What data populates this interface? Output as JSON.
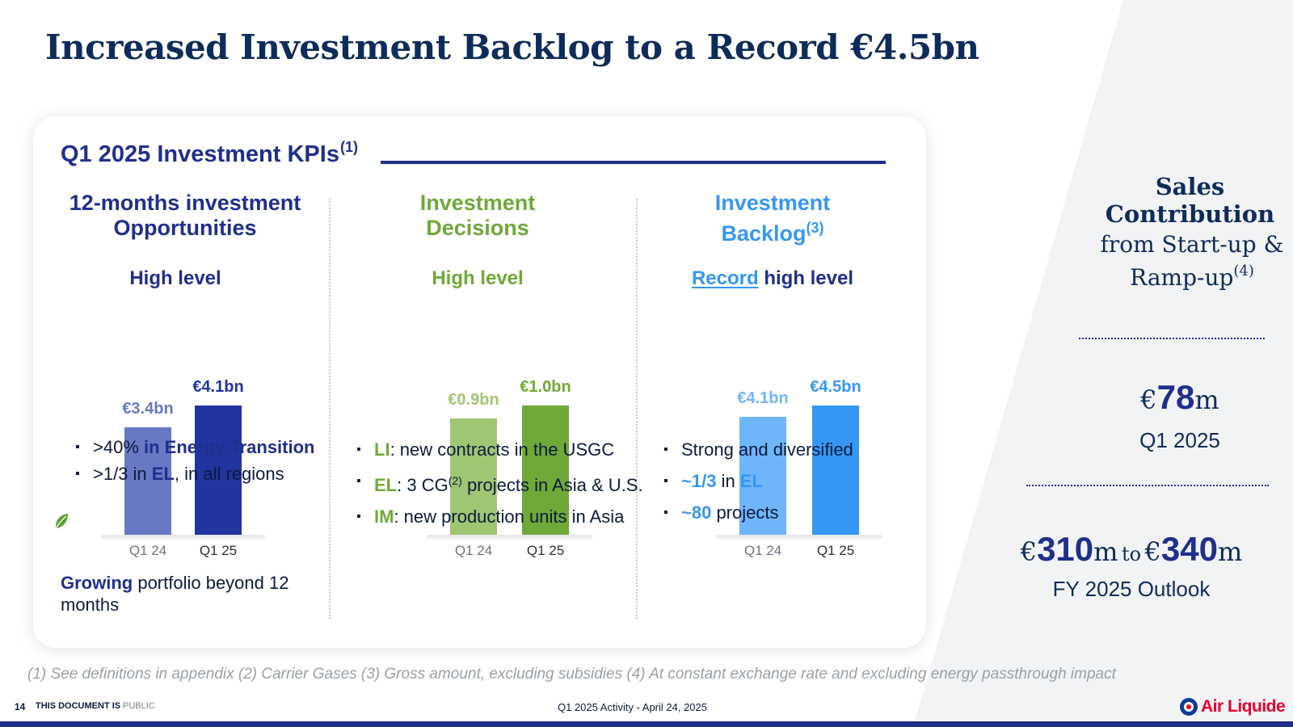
{
  "title": "Increased Investment Backlog to a Record €4.5bn",
  "kpi": {
    "title": "Q1 2025 Investment KPIs",
    "note": "(1)"
  },
  "colors": {
    "navy": "#1f2f8c",
    "green": "#6fa937",
    "blue": "#3597f5"
  },
  "columns": [
    {
      "heading1": "12-months investment",
      "heading2": "Opportunities",
      "subtitle": "High level",
      "color": "#1f2f8c",
      "bars": [
        {
          "label": "Q1 24",
          "value": 3.4,
          "text": "€3.4bn",
          "color": "#6878c4"
        },
        {
          "label": "Q1 25",
          "value": 4.1,
          "text": "€4.1bn",
          "color": "#2134a0"
        }
      ]
    },
    {
      "heading1": "Investment",
      "heading2": "Decisions",
      "subtitle": "High level",
      "color": "#6fa937",
      "bars": [
        {
          "label": "Q1 24",
          "value": 0.9,
          "text": "€0.9bn",
          "color": "#a0c674"
        },
        {
          "label": "Q1 25",
          "value": 1.0,
          "text": "€1.0bn",
          "color": "#6fa937"
        }
      ]
    },
    {
      "heading1": "Investment",
      "heading2": "Backlog",
      "heading2_note": "(3)",
      "subtitle_u": "Record",
      "subtitle": " high level",
      "color": "#3597f5",
      "bars": [
        {
          "label": "Q1 24",
          "value": 4.1,
          "text": "€4.1bn",
          "color": "#6fb5fa"
        },
        {
          "label": "Q1 25",
          "value": 4.5,
          "text": "€4.5bn",
          "color": "#3597f5"
        }
      ]
    }
  ],
  "col1_bullets": [
    {
      "plain": ">40% ",
      "strong": "in Energy Transition"
    },
    {
      "plain1": ">1/3 in ",
      "strong": "EL",
      "plain2": ", in all regions"
    }
  ],
  "col1_growing": {
    "strong": "Growing",
    "rest": " portfolio beyond 12 months"
  },
  "col2_bullets": [
    {
      "strong": "LI",
      "rest": ": new contracts in the USGC"
    },
    {
      "strong": "EL",
      "rest1": ": 3 CG",
      "note": "(2)",
      "rest2": " projects in Asia & U.S."
    },
    {
      "strong": "IM",
      "rest": ": new production units in Asia"
    }
  ],
  "col3_bullets": [
    {
      "plain": "Strong and diversified"
    },
    {
      "strong": "~1/3",
      "plain": " in ",
      "strong2": "EL"
    },
    {
      "strong": "~80",
      "plain": " projects"
    }
  ],
  "sales": {
    "line1": "Sales",
    "line2": "Contribution",
    "line3": "from Start-up &",
    "line4": "Ramp-up",
    "note": "(4)",
    "q1_currency": "€",
    "q1_value": "78",
    "q1_unit": "m",
    "q1_label": "Q1 2025",
    "fy_currency1": "€",
    "fy_value1": "310",
    "fy_unit1": "m",
    "fy_to": "to",
    "fy_currency2": "€",
    "fy_value2": "340",
    "fy_unit2": "m",
    "fy_label": "FY 2025 Outlook"
  },
  "footnotes": "(1) See definitions in appendix   (2) Carrier Gases  (3) Gross amount, excluding subsidies   (4) At constant exchange rate and excluding energy passthrough impact",
  "footer": {
    "page": "14",
    "doc_label": "THIS DOCUMENT IS",
    "classification": "PUBLIC",
    "center": "Q1 2025 Activity  - April 24, 2025",
    "logo_text": "Air Liquide"
  }
}
